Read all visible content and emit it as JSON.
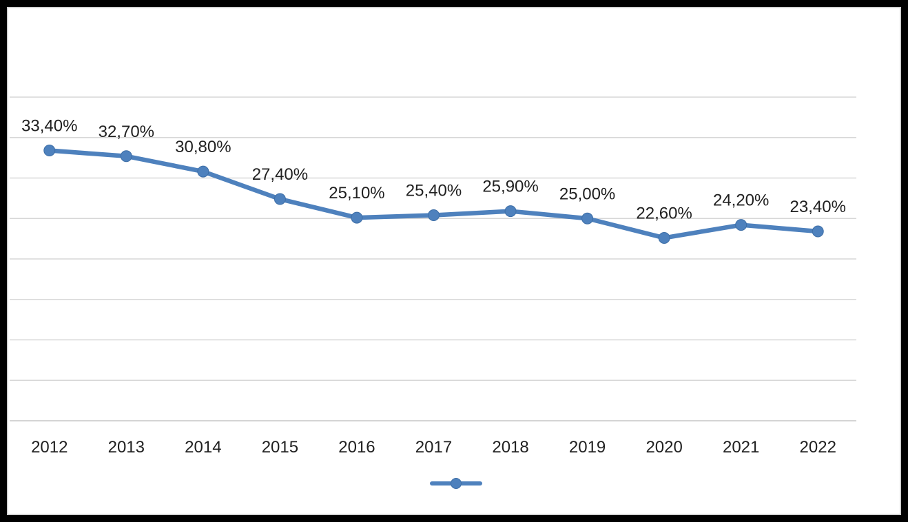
{
  "frame": {
    "outer_border_color": "#000000",
    "chart_background": "#ffffff",
    "chart_border_color": "#d2d2d2"
  },
  "chart_data": {
    "type": "line",
    "title": "",
    "categories": [
      "2012",
      "2013",
      "2014",
      "2015",
      "2016",
      "2017",
      "2018",
      "2019",
      "2020",
      "2021",
      "2022"
    ],
    "series": [
      {
        "name": "",
        "values": [
          33.4,
          32.7,
          30.8,
          27.4,
          25.1,
          25.4,
          25.9,
          25.0,
          22.6,
          24.2,
          23.4
        ],
        "labels": [
          "33,40%",
          "32,70%",
          "30,80%",
          "27,40%",
          "25,10%",
          "25,40%",
          "25,90%",
          "25,00%",
          "22,60%",
          "24,20%",
          "23,40%"
        ],
        "color": "#4e81bd",
        "marker_edge_color": "#3d6ea6"
      }
    ],
    "ylim": [
      0,
      40
    ],
    "gridline_step": 5,
    "grid": true,
    "y_axis_labels_visible": false,
    "legend_position": "bottom",
    "legend_text": "",
    "gridline_color": "#d7d7d7",
    "axis_line_color": "#c5c5c5",
    "label_color": "#212121",
    "data_label_font_size": 24,
    "axis_label_font_size": 24
  }
}
